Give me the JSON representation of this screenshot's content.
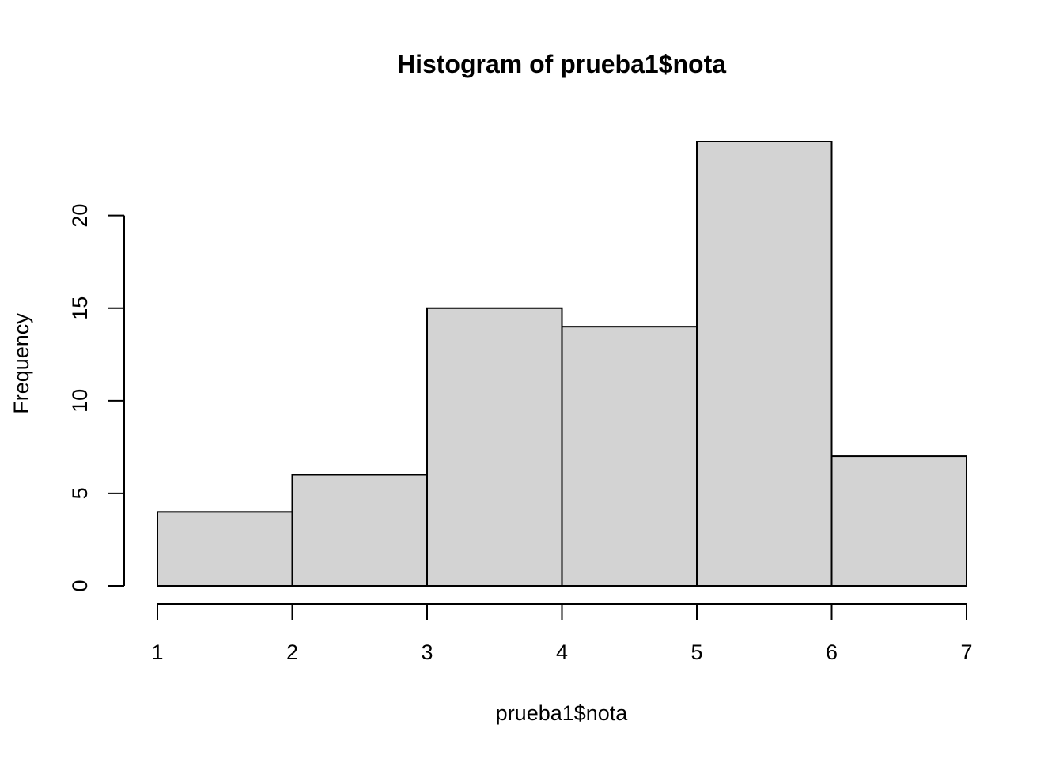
{
  "chart_data": {
    "type": "bar",
    "subtype": "histogram",
    "title": "Histogram of prueba1$nota",
    "xlabel": "prueba1$nota",
    "ylabel": "Frequency",
    "bins": [
      {
        "start": 1,
        "end": 2,
        "count": 4
      },
      {
        "start": 2,
        "end": 3,
        "count": 6
      },
      {
        "start": 3,
        "end": 4,
        "count": 15
      },
      {
        "start": 4,
        "end": 5,
        "count": 14
      },
      {
        "start": 5,
        "end": 6,
        "count": 24
      },
      {
        "start": 6,
        "end": 7,
        "count": 7
      }
    ],
    "xlim": [
      1,
      7
    ],
    "ylim": [
      0,
      24
    ],
    "x_ticks": [
      1,
      2,
      3,
      4,
      5,
      6,
      7
    ],
    "y_ticks": [
      0,
      5,
      10,
      15,
      20
    ],
    "bar_fill": "#d3d3d3",
    "grid": false
  }
}
